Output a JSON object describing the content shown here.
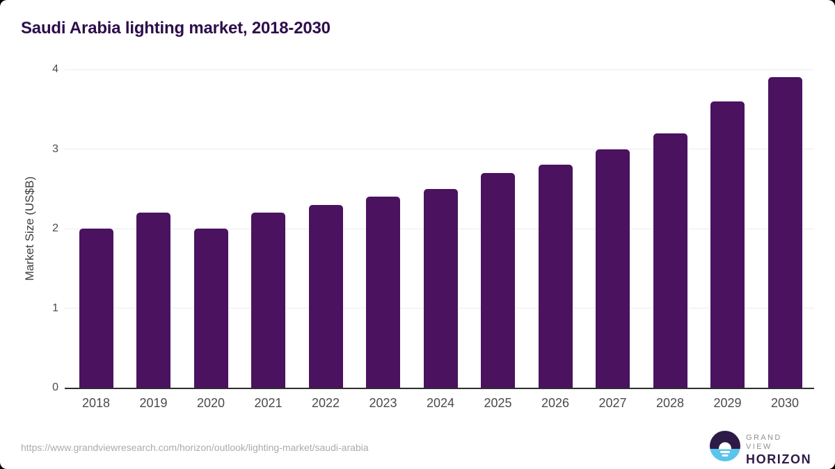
{
  "chart": {
    "title": "Saudi Arabia lighting market, 2018-2030"
  },
  "chart_data": {
    "type": "bar",
    "title": "Saudi Arabia lighting market, 2018-2030",
    "categories": [
      "2018",
      "2019",
      "2020",
      "2021",
      "2022",
      "2023",
      "2024",
      "2025",
      "2026",
      "2027",
      "2028",
      "2029",
      "2030"
    ],
    "values": [
      2.0,
      2.2,
      2.0,
      2.2,
      2.3,
      2.4,
      2.5,
      2.7,
      2.8,
      3.0,
      3.2,
      3.6,
      3.9
    ],
    "xlabel": "",
    "ylabel": "Market Size (US$B)",
    "ylim": [
      0,
      4
    ],
    "yticks": [
      0,
      1,
      2,
      3,
      4
    ],
    "grid": "horizontal-only",
    "legend": "none"
  },
  "footer": {
    "source_url": "https://www.grandviewresearch.com/horizon/outlook/lighting-market/saudi-arabia",
    "logo": {
      "line1": "GRAND VIEW",
      "line2": "HORIZON"
    }
  },
  "colors": {
    "bar": "#4a125f",
    "title": "#2d0d4a",
    "axis_label": "#4a4a4a",
    "axis_line": "#2e2e2e",
    "gridline": "#ececec",
    "source_url": "#ababab",
    "logo_navy": "#2e1a47",
    "logo_blue": "#5bc4ea",
    "logo_gray": "#8f8f8f"
  }
}
